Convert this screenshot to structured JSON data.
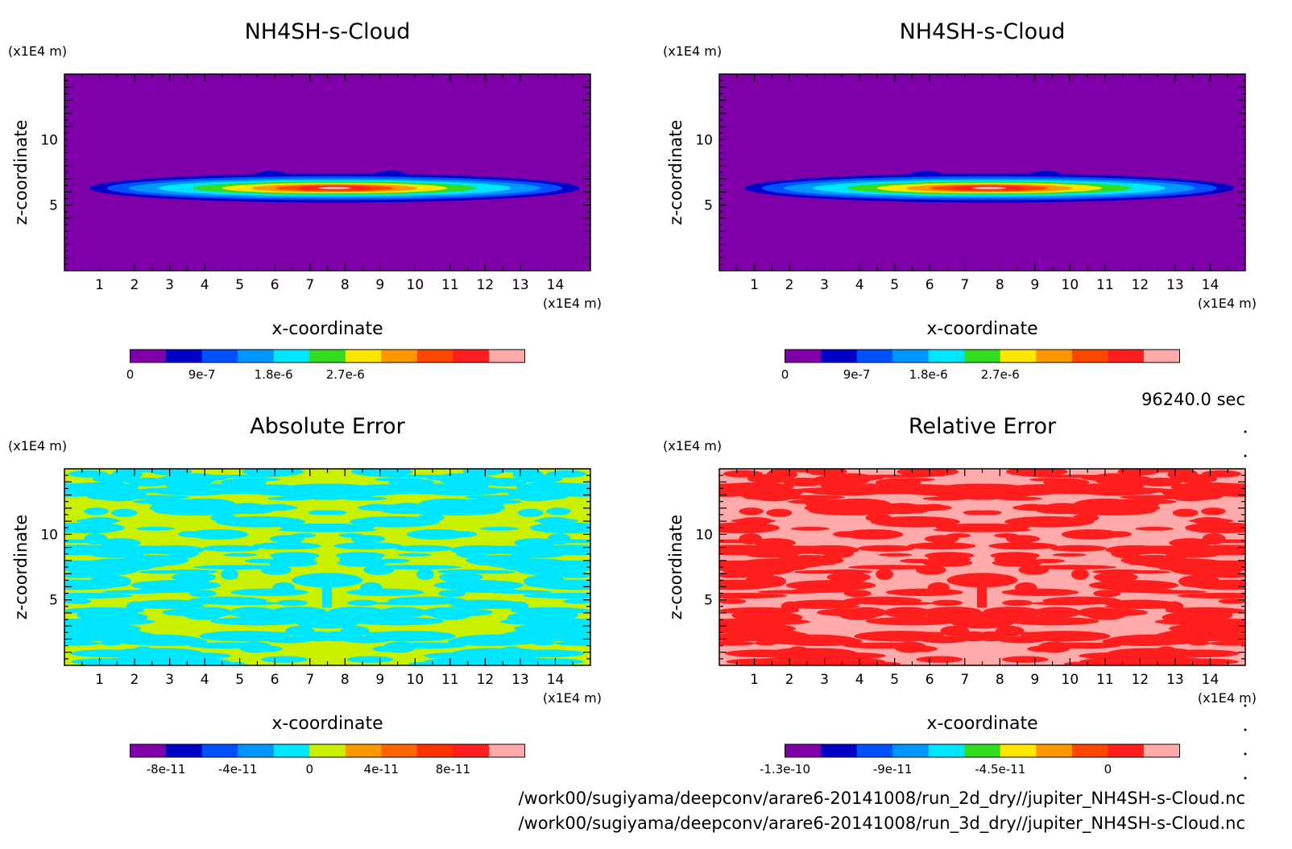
{
  "chart_data": [
    {
      "type": "heatmap",
      "title": "NH4SH-s-Cloud",
      "xlabel": "x-coordinate",
      "ylabel": "z-coordinate",
      "x_unit": "(x1E4 m)",
      "y_unit": "(x1E4 m)",
      "xlim": [
        0,
        15
      ],
      "ylim": [
        0,
        15
      ],
      "xticks": [
        "1",
        "2",
        "3",
        "4",
        "5",
        "6",
        "7",
        "8",
        "9",
        "10",
        "11",
        "12",
        "13",
        "14"
      ],
      "yticks": [
        "5",
        "10"
      ],
      "field": "cloud",
      "colorbar": {
        "colors": [
          "#7f00aa",
          "#0000c8",
          "#0050ff",
          "#0096ff",
          "#00e6ff",
          "#32dc1e",
          "#ffe600",
          "#ff9600",
          "#ff4600",
          "#ff1e1e",
          "#ffaaaa"
        ],
        "tick_labels": [
          "0",
          "9e-7",
          "1.8e-6",
          "2.7e-6"
        ],
        "tick_index": [
          0,
          2,
          4,
          6
        ]
      }
    },
    {
      "type": "heatmap",
      "title": "NH4SH-s-Cloud",
      "xlabel": "x-coordinate",
      "ylabel": "z-coordinate",
      "x_unit": "(x1E4 m)",
      "y_unit": "(x1E4 m)",
      "xlim": [
        0,
        15
      ],
      "ylim": [
        0,
        15
      ],
      "xticks": [
        "1",
        "2",
        "3",
        "4",
        "5",
        "6",
        "7",
        "8",
        "9",
        "10",
        "11",
        "12",
        "13",
        "14"
      ],
      "yticks": [
        "5",
        "10"
      ],
      "field": "cloud",
      "colorbar": {
        "colors": [
          "#7f00aa",
          "#0000c8",
          "#0050ff",
          "#0096ff",
          "#00e6ff",
          "#32dc1e",
          "#ffe600",
          "#ff9600",
          "#ff4600",
          "#ff1e1e",
          "#ffaaaa"
        ],
        "tick_labels": [
          "0",
          "9e-7",
          "1.8e-6",
          "2.7e-6"
        ],
        "tick_index": [
          0,
          2,
          4,
          6
        ]
      }
    },
    {
      "type": "heatmap",
      "title": "Absolute Error",
      "xlabel": "x-coordinate",
      "ylabel": "z-coordinate",
      "x_unit": "(x1E4 m)",
      "y_unit": "(x1E4 m)",
      "xlim": [
        0,
        15
      ],
      "ylim": [
        0,
        15
      ],
      "xticks": [
        "1",
        "2",
        "3",
        "4",
        "5",
        "6",
        "7",
        "8",
        "9",
        "10",
        "11",
        "12",
        "13",
        "14"
      ],
      "yticks": [
        "5",
        "10"
      ],
      "field": "error",
      "base_color": "#c8f000",
      "blob_color": "#00e6ff",
      "colorbar": {
        "colors": [
          "#7f00aa",
          "#0000c8",
          "#0050ff",
          "#0096ff",
          "#00e6ff",
          "#c8f000",
          "#ff9600",
          "#ff6400",
          "#ff3200",
          "#ff1e1e",
          "#ffaaaa"
        ],
        "tick_labels": [
          "-8e-11",
          "-4e-11",
          "0",
          "4e-11",
          "8e-11"
        ],
        "tick_index": [
          1,
          3,
          5,
          7,
          9
        ]
      }
    },
    {
      "type": "heatmap",
      "title": "Relative Error",
      "xlabel": "x-coordinate",
      "ylabel": "z-coordinate",
      "x_unit": "(x1E4 m)",
      "y_unit": "(x1E4 m)",
      "xlim": [
        0,
        15
      ],
      "ylim": [
        0,
        15
      ],
      "xticks": [
        "1",
        "2",
        "3",
        "4",
        "5",
        "6",
        "7",
        "8",
        "9",
        "10",
        "11",
        "12",
        "13",
        "14"
      ],
      "yticks": [
        "5",
        "10"
      ],
      "field": "error",
      "base_color": "#ffaaaa",
      "blob_color": "#ff1e1e",
      "colorbar": {
        "colors": [
          "#7f00aa",
          "#0000c8",
          "#0050ff",
          "#0096ff",
          "#00e6ff",
          "#32dc1e",
          "#ffe600",
          "#ff9600",
          "#ff4600",
          "#ff1e1e",
          "#ffaaaa"
        ],
        "tick_labels": [
          "-1.3e-10",
          "-9e-11",
          "-4.5e-11",
          "0"
        ],
        "tick_index": [
          0,
          3,
          6,
          9
        ]
      }
    }
  ],
  "time_label": "96240.0 sec",
  "footer_lines": [
    "/work00/sugiyama/deepconv/arare6-20141008/run_2d_dry//jupiter_NH4SH-s-Cloud.nc",
    "/work00/sugiyama/deepconv/arare6-20141008/run_3d_dry//jupiter_NH4SH-s-Cloud.nc"
  ]
}
